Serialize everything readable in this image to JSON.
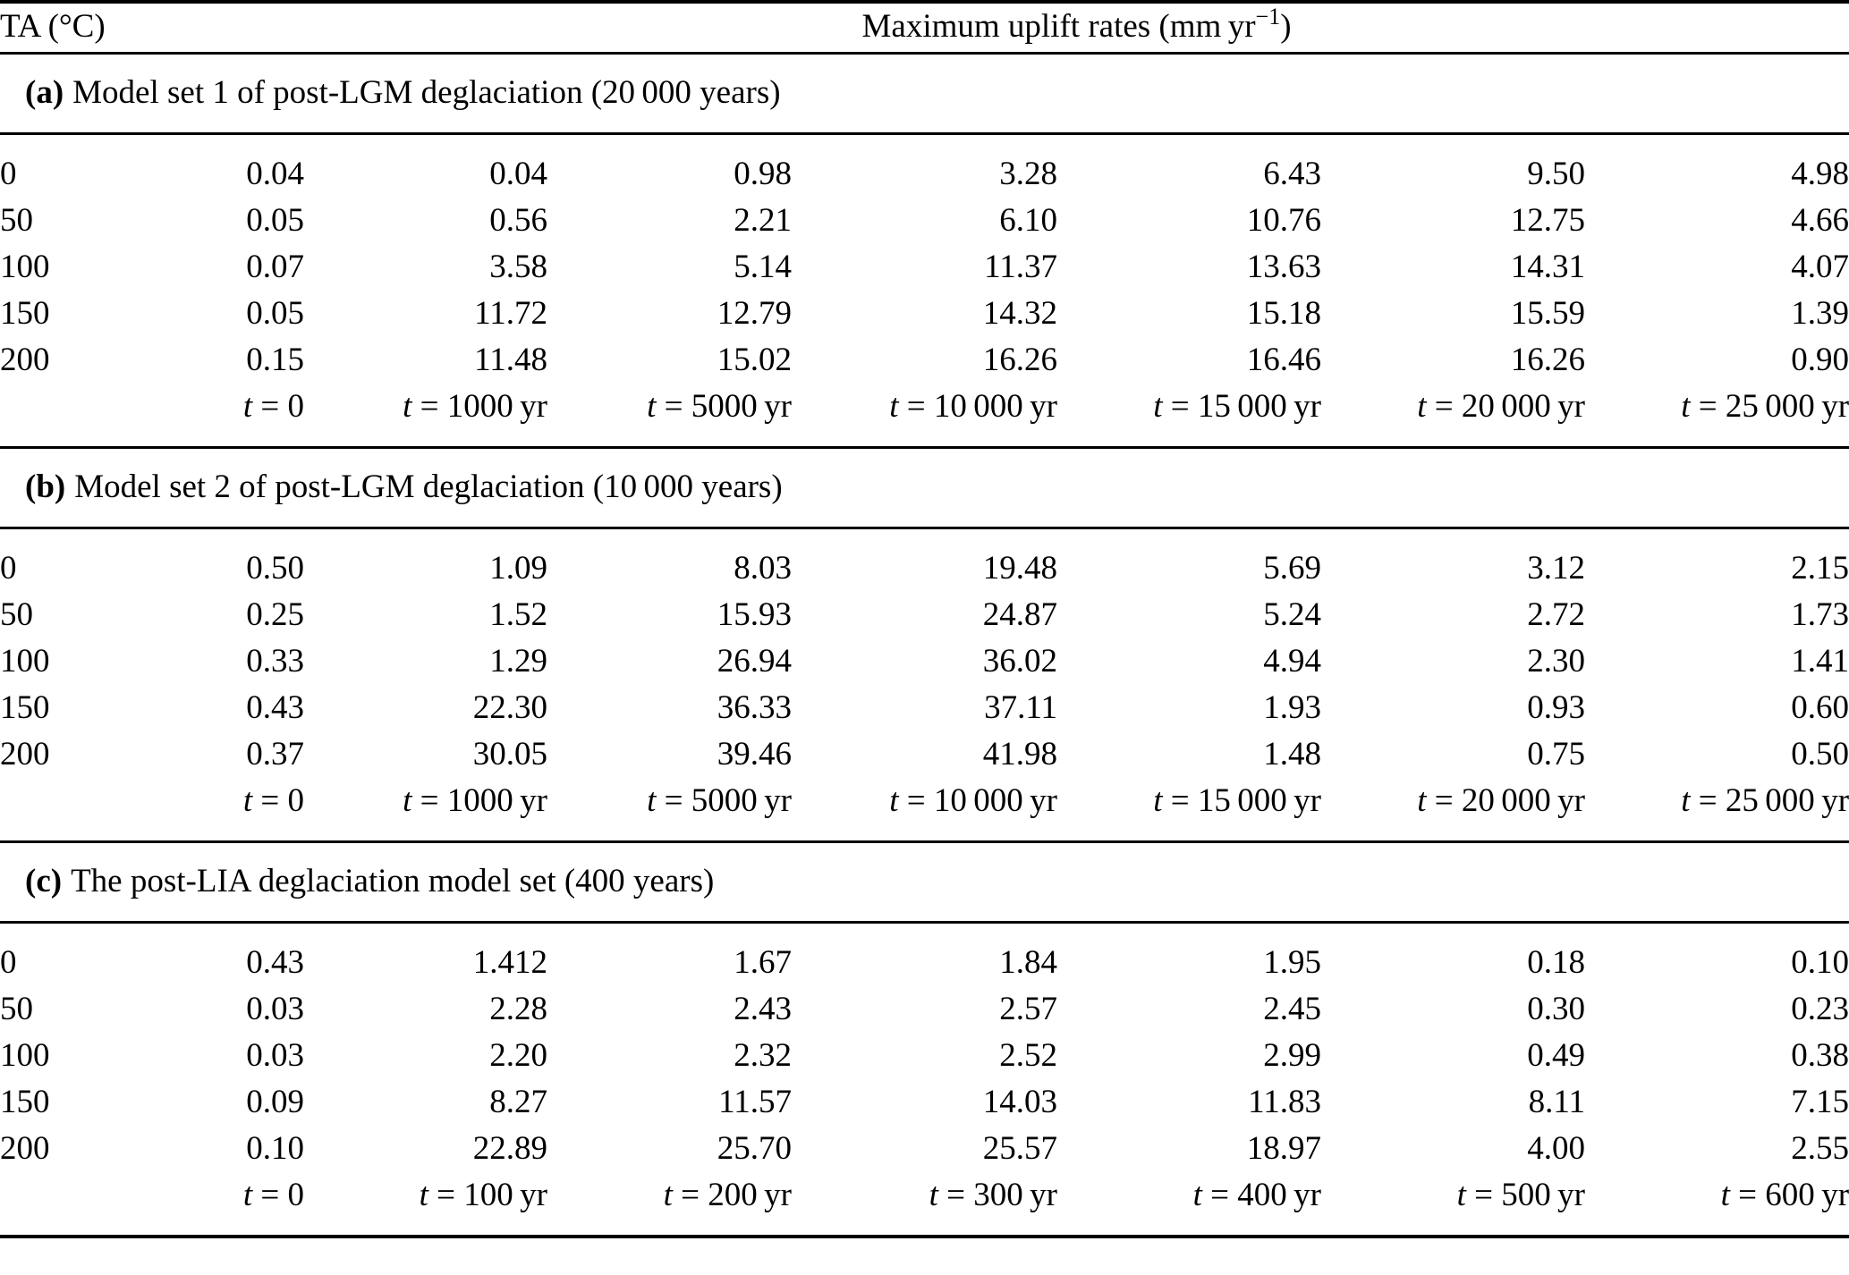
{
  "table": {
    "header": {
      "ta_label": "TA (°C)",
      "uplift_label_main": "Maximum uplift rates (mm yr",
      "uplift_label_sup": "−1",
      "uplift_label_close": ")"
    },
    "sections": [
      {
        "id": "a",
        "label_prefix": "(a)",
        "label_title": "Model set 1 of post-LGM deglaciation (20 000 years)",
        "rows": [
          {
            "ta": "0",
            "values": [
              "0.04",
              "0.04",
              "0.98",
              "3.28",
              "6.43",
              "9.50",
              "4.98"
            ]
          },
          {
            "ta": "50",
            "values": [
              "0.05",
              "0.56",
              "2.21",
              "6.10",
              "10.76",
              "12.75",
              "4.66"
            ]
          },
          {
            "ta": "100",
            "values": [
              "0.07",
              "3.58",
              "5.14",
              "11.37",
              "13.63",
              "14.31",
              "4.07"
            ]
          },
          {
            "ta": "150",
            "values": [
              "0.05",
              "11.72",
              "12.79",
              "14.32",
              "15.18",
              "15.59",
              "1.39"
            ]
          },
          {
            "ta": "200",
            "values": [
              "0.15",
              "11.48",
              "15.02",
              "16.26",
              "16.46",
              "16.26",
              "0.90"
            ]
          }
        ],
        "time_labels": [
          "t = 0",
          "t = 1000 yr",
          "t = 5000 yr",
          "t = 10 000 yr",
          "t = 15 000 yr",
          "t = 20 000 yr",
          "t = 25 000 yr"
        ]
      },
      {
        "id": "b",
        "label_prefix": "(b)",
        "label_title": "Model set 2 of post-LGM deglaciation (10 000 years)",
        "rows": [
          {
            "ta": "0",
            "values": [
              "0.50",
              "1.09",
              "8.03",
              "19.48",
              "5.69",
              "3.12",
              "2.15"
            ]
          },
          {
            "ta": "50",
            "values": [
              "0.25",
              "1.52",
              "15.93",
              "24.87",
              "5.24",
              "2.72",
              "1.73"
            ]
          },
          {
            "ta": "100",
            "values": [
              "0.33",
              "1.29",
              "26.94",
              "36.02",
              "4.94",
              "2.30",
              "1.41"
            ]
          },
          {
            "ta": "150",
            "values": [
              "0.43",
              "22.30",
              "36.33",
              "37.11",
              "1.93",
              "0.93",
              "0.60"
            ]
          },
          {
            "ta": "200",
            "values": [
              "0.37",
              "30.05",
              "39.46",
              "41.98",
              "1.48",
              "0.75",
              "0.50"
            ]
          }
        ],
        "time_labels": [
          "t = 0",
          "t = 1000 yr",
          "t = 5000 yr",
          "t = 10 000 yr",
          "t = 15 000 yr",
          "t = 20 000 yr",
          "t = 25 000 yr"
        ]
      },
      {
        "id": "c",
        "label_prefix": "(c)",
        "label_title": "The post-LIA deglaciation model set (400 years)",
        "rows": [
          {
            "ta": "0",
            "values": [
              "0.43",
              "1.412",
              "1.67",
              "1.84",
              "1.95",
              "0.18",
              "0.10"
            ]
          },
          {
            "ta": "50",
            "values": [
              "0.03",
              "2.28",
              "2.43",
              "2.57",
              "2.45",
              "0.30",
              "0.23"
            ]
          },
          {
            "ta": "100",
            "values": [
              "0.03",
              "2.20",
              "2.32",
              "2.52",
              "2.99",
              "0.49",
              "0.38"
            ]
          },
          {
            "ta": "150",
            "values": [
              "0.09",
              "8.27",
              "11.57",
              "14.03",
              "11.83",
              "8.11",
              "7.15"
            ]
          },
          {
            "ta": "200",
            "values": [
              "0.10",
              "22.89",
              "25.70",
              "25.57",
              "18.97",
              "4.00",
              "2.55"
            ]
          }
        ],
        "time_labels": [
          "t = 0",
          "t = 100 yr",
          "t = 200 yr",
          "t = 300 yr",
          "t = 400 yr",
          "t = 500 yr",
          "t = 600 yr"
        ]
      }
    ]
  }
}
